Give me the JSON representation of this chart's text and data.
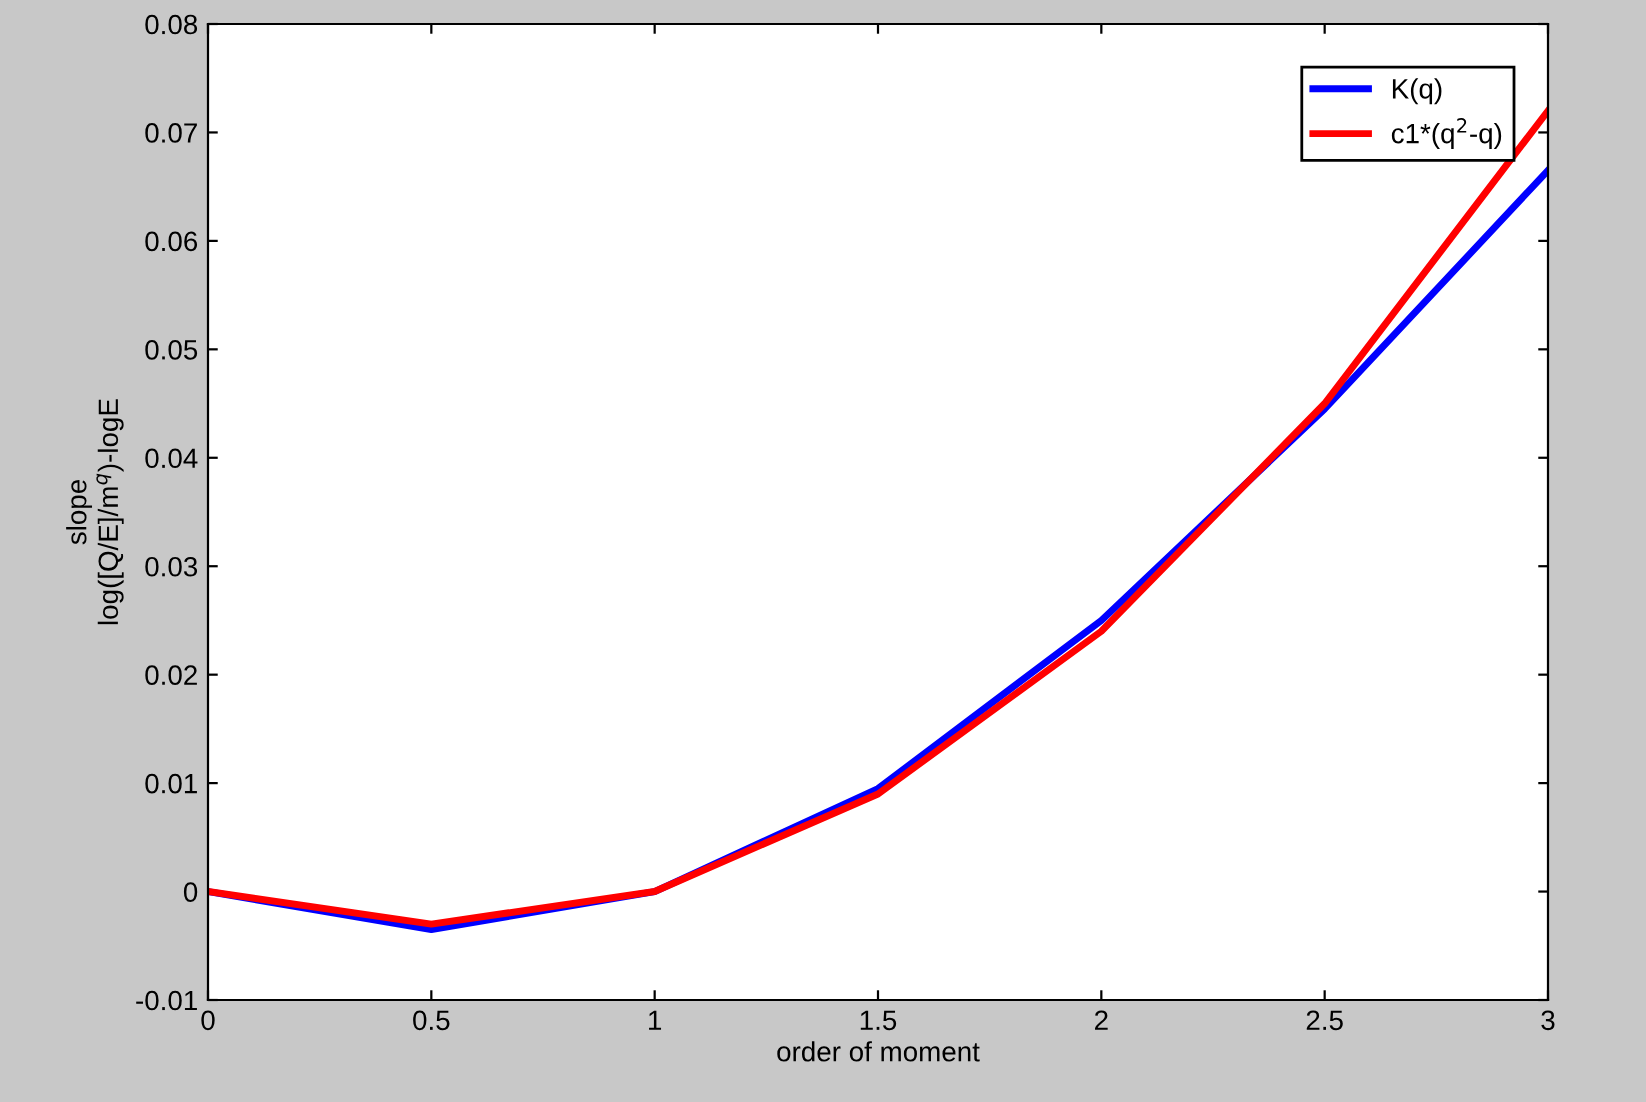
{
  "chart_data": {
    "type": "line",
    "xlabel": "order of moment",
    "ylabel": "slope\nlog([Q/E]/m$^{q}$)-logE",
    "x": [
      0,
      0.5,
      1,
      1.5,
      2,
      2.5,
      3
    ],
    "series": [
      {
        "name": "K(q)",
        "color": "#0000ff",
        "values": [
          0,
          -0.0035,
          0,
          0.0095,
          0.025,
          0.0445,
          0.0665
        ]
      },
      {
        "name": "c1*(q$^{2}$-q)",
        "color": "#ff0000",
        "values": [
          0,
          -0.003,
          0,
          0.009,
          0.024,
          0.045,
          0.072
        ]
      }
    ],
    "xlim": [
      0,
      3
    ],
    "xticks": [
      0,
      0.5,
      1,
      1.5,
      2,
      2.5,
      3
    ],
    "ylim": [
      -0.01,
      0.08
    ],
    "yticks": [
      -0.01,
      0,
      0.01,
      0.02,
      0.03,
      0.04,
      0.05,
      0.06,
      0.07,
      0.08
    ],
    "grid": false,
    "legend": "top right",
    "marker": "none",
    "line_style": "solid"
  }
}
